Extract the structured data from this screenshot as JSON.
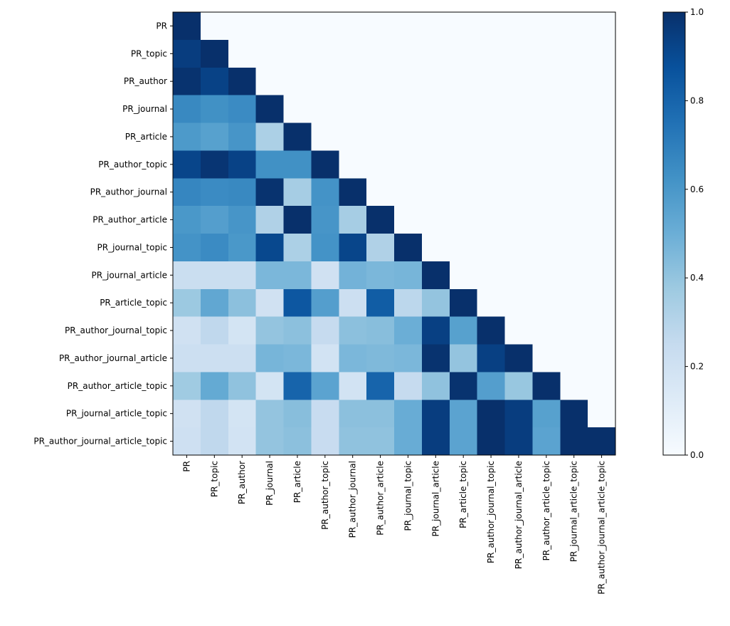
{
  "chart_data": {
    "type": "heatmap",
    "title": "",
    "xlabel": "",
    "ylabel": "",
    "labels": [
      "PR",
      "PR_topic",
      "PR_author",
      "PR_journal",
      "PR_article",
      "PR_author_topic",
      "PR_author_journal",
      "PR_author_article",
      "PR_journal_topic",
      "PR_journal_article",
      "PR_article_topic",
      "PR_author_journal_topic",
      "PR_author_journal_article",
      "PR_author_article_topic",
      "PR_journal_article_topic",
      "PR_author_journal_article_topic"
    ],
    "matrix": [
      [
        1.0
      ],
      [
        0.95,
        1.0
      ],
      [
        0.99,
        0.93,
        1.0
      ],
      [
        0.66,
        0.63,
        0.65,
        1.0
      ],
      [
        0.59,
        0.56,
        0.61,
        0.33,
        1.0
      ],
      [
        0.92,
        0.98,
        0.93,
        0.63,
        0.63,
        1.0
      ],
      [
        0.67,
        0.65,
        0.66,
        0.99,
        0.35,
        0.62,
        1.0
      ],
      [
        0.6,
        0.57,
        0.61,
        0.32,
        1.0,
        0.61,
        0.35,
        1.0
      ],
      [
        0.62,
        0.65,
        0.6,
        0.91,
        0.33,
        0.62,
        0.92,
        0.32,
        1.0
      ],
      [
        0.23,
        0.23,
        0.23,
        0.46,
        0.46,
        0.2,
        0.48,
        0.46,
        0.47,
        1.0
      ],
      [
        0.38,
        0.53,
        0.42,
        0.2,
        0.85,
        0.57,
        0.22,
        0.83,
        0.28,
        0.4,
        1.0
      ],
      [
        0.2,
        0.27,
        0.18,
        0.4,
        0.42,
        0.25,
        0.42,
        0.43,
        0.5,
        0.94,
        0.56,
        1.0
      ],
      [
        0.22,
        0.22,
        0.22,
        0.47,
        0.46,
        0.19,
        0.46,
        0.45,
        0.46,
        0.99,
        0.4,
        0.94,
        1.0
      ],
      [
        0.37,
        0.52,
        0.41,
        0.18,
        0.8,
        0.55,
        0.19,
        0.8,
        0.25,
        0.41,
        0.99,
        0.57,
        0.39,
        1.0
      ],
      [
        0.2,
        0.27,
        0.18,
        0.4,
        0.43,
        0.24,
        0.42,
        0.42,
        0.51,
        0.95,
        0.55,
        1.0,
        0.95,
        0.56,
        1.0
      ],
      [
        0.21,
        0.27,
        0.19,
        0.4,
        0.42,
        0.24,
        0.41,
        0.41,
        0.51,
        0.95,
        0.55,
        1.0,
        0.95,
        0.55,
        1.0,
        1.0
      ]
    ],
    "empty_cell_value": 0.0,
    "colormap": "Blues",
    "colormap_stops": [
      "#f7fbff",
      "#deebf7",
      "#c6dbef",
      "#9ecae1",
      "#6baed6",
      "#4292c6",
      "#2171b5",
      "#08519c",
      "#08306b"
    ],
    "vmin": 0.0,
    "vmax": 1.0,
    "colorbar": {
      "ticks": [
        0.0,
        0.2,
        0.4,
        0.6,
        0.8,
        1.0
      ],
      "tick_labels": [
        "0.0",
        "0.2",
        "0.4",
        "0.6",
        "0.8",
        "1.0"
      ]
    },
    "grid": false,
    "legend": "colorbar-right"
  }
}
